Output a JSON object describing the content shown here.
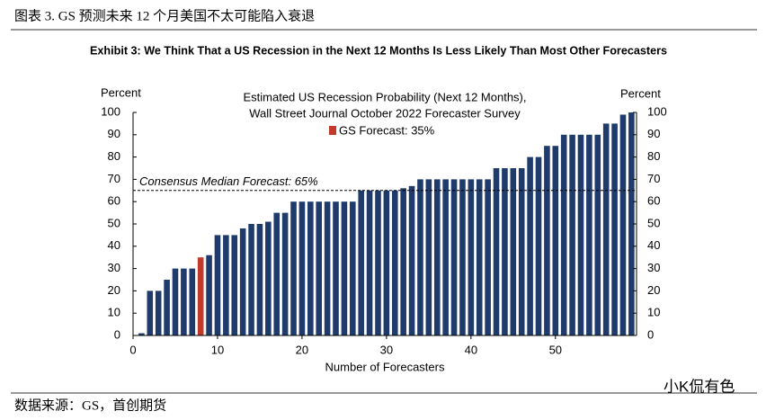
{
  "caption": "图表 3.   GS 预测未来 12 个月美国不太可能陷入衰退",
  "source": "数据来源：GS，首创期货",
  "watermark": "小K侃有色",
  "chart_data": {
    "type": "bar",
    "title": "Exhibit 3: We Think That a US Recession in the Next 12 Months Is Less Likely Than Most Other Forecasters",
    "subtitle": [
      "Estimated US Recession Probability (Next 12 Months),",
      "Wall Street Journal October 2022 Forecaster Survey"
    ],
    "ylabel": "Percent",
    "y2label": "Percent",
    "xlabel": "Number of Forecasters",
    "x": [
      1,
      2,
      3,
      4,
      5,
      6,
      7,
      8,
      9,
      10,
      11,
      12,
      13,
      14,
      15,
      16,
      17,
      18,
      19,
      20,
      21,
      22,
      23,
      24,
      25,
      26,
      27,
      28,
      29,
      30,
      31,
      32,
      33,
      34,
      35,
      36,
      37,
      38,
      39,
      40,
      41,
      42,
      43,
      44,
      45,
      46,
      47,
      48,
      49,
      50,
      51,
      52,
      53,
      54,
      55,
      56,
      57,
      58,
      59
    ],
    "values": [
      1,
      20,
      20,
      25,
      30,
      30,
      30,
      35,
      36,
      45,
      45,
      45,
      48,
      50,
      50,
      51,
      55,
      55,
      60,
      60,
      60,
      60,
      60,
      60,
      60,
      60,
      65,
      65,
      65,
      65,
      65,
      66,
      67,
      70,
      70,
      70,
      70,
      70,
      70,
      70,
      70,
      70,
      75,
      75,
      75,
      75,
      80,
      80,
      85,
      85,
      90,
      90,
      90,
      90,
      90,
      95,
      95,
      99,
      100
    ],
    "color": "#1f3b6b",
    "highlight": {
      "x": 8,
      "color": "#c0392b",
      "name": "GS Forecast: 35%"
    },
    "reference_line": {
      "value": 65,
      "label": "Consensus Median Forecast: 65%"
    },
    "xlim": [
      0,
      59.6
    ],
    "xticks": [
      0,
      10,
      20,
      30,
      40,
      50
    ],
    "ylim": [
      0,
      100
    ],
    "yticks": [
      0,
      10,
      20,
      30,
      40,
      50,
      60,
      70,
      80,
      90,
      100
    ],
    "y2lim": [
      0,
      100
    ],
    "y2ticks": [
      0,
      10,
      20,
      30,
      40,
      50,
      60,
      70,
      80,
      90,
      100
    ]
  }
}
